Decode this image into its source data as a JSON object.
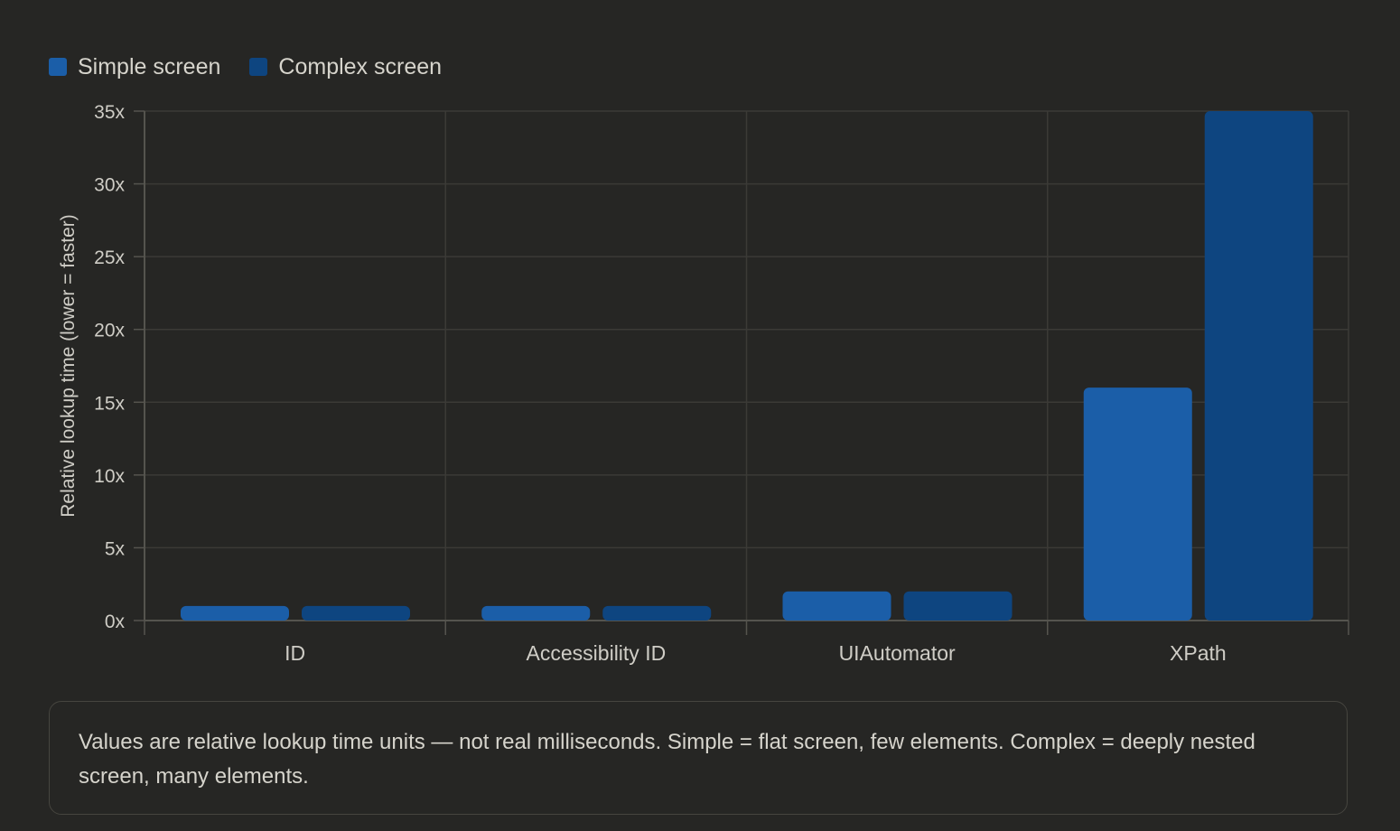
{
  "chart_data": {
    "type": "bar",
    "ylabel": "Relative lookup time (lower = faster)",
    "xlabel": "",
    "categories": [
      "ID",
      "Accessibility ID",
      "UIAutomator",
      "XPath"
    ],
    "series": [
      {
        "name": "Simple screen",
        "values": [
          1,
          1,
          2,
          16
        ],
        "color": "#1b5ea8"
      },
      {
        "name": "Complex screen",
        "values": [
          1,
          1,
          2,
          35
        ],
        "color": "#0e4580"
      }
    ],
    "ylim": [
      0,
      35
    ],
    "yticks": [
      "0x",
      "5x",
      "10x",
      "15x",
      "20x",
      "25x",
      "30x",
      "35x"
    ],
    "grid": true,
    "legend": "top-left"
  },
  "note": "Values are relative lookup time units — not real milliseconds. Simple = flat screen, few elements. Complex = deeply nested screen, many elements."
}
